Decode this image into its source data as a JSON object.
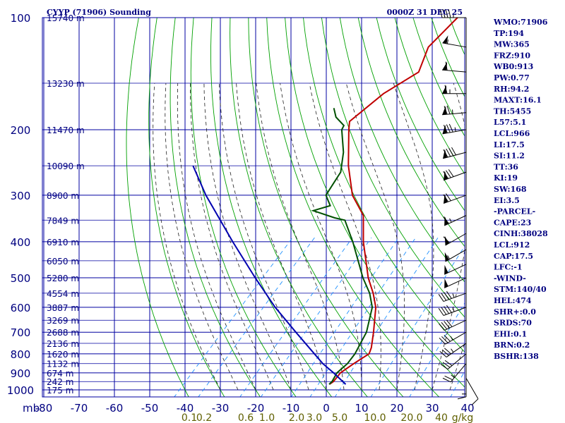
{
  "header": {
    "title": "CYYP (71906) Sounding",
    "valid_time": "0000Z 31 DEC 25"
  },
  "stats": [
    "WMO:71906",
    "TP:194",
    "MW:365",
    "FRZ:910",
    "WB0:913",
    "PW:0.77",
    "RH:94.2",
    "MAXT:16.1",
    "TH:5455",
    "L57:5.1",
    "LCL:966",
    "LI:17.5",
    "SI:11.2",
    "TT:36",
    "KI:19",
    "SW:168",
    "EI:3.5",
    "-PARCEL-",
    "CAPE:23",
    "CINH:38028",
    "LCL:912",
    "CAP:17.5",
    "LFC:-1",
    "-WIND-",
    "STM:140/40",
    "HEL:474",
    "SHR+:0.0",
    "SRDS:70",
    "EHI:0.1",
    "BRN:0.2",
    "BSHR:138"
  ],
  "colors": {
    "frame": "#0000a0",
    "dry_adiabat": "#00a000",
    "moist_adiabat": "#202020",
    "mixing_ratio": "#1e90ff",
    "temperature": "#c00000",
    "dewpoint": "#005000",
    "parcel": "#0000b0",
    "wind": "#000000",
    "mixing_label": "#606000"
  },
  "chart_data": {
    "type": "line",
    "subtype": "skew-T log-P sounding",
    "xlabel": "",
    "ylabel": "mb",
    "ylim": [
      1000,
      100
    ],
    "xlim": [
      -80,
      40
    ],
    "y_scale": "log",
    "pressure_ticks": [
      {
        "p": 100,
        "label": "100"
      },
      {
        "p": 200,
        "label": "200"
      },
      {
        "p": 300,
        "label": "300"
      },
      {
        "p": 400,
        "label": "400"
      },
      {
        "p": 500,
        "label": "500"
      },
      {
        "p": 600,
        "label": "600"
      },
      {
        "p": 700,
        "label": "700"
      },
      {
        "p": 800,
        "label": "800"
      },
      {
        "p": 900,
        "label": "900"
      },
      {
        "p": 1000,
        "label": "1000"
      }
    ],
    "temperature_ticks": [
      {
        "t": -80,
        "label": "-80"
      },
      {
        "t": -70,
        "label": "-70"
      },
      {
        "t": -60,
        "label": "-60"
      },
      {
        "t": -50,
        "label": "-50"
      },
      {
        "t": -40,
        "label": "-40"
      },
      {
        "t": -30,
        "label": "-30"
      },
      {
        "t": -20,
        "label": "-20"
      },
      {
        "t": -10,
        "label": "-10"
      },
      {
        "t": 0,
        "label": "0"
      },
      {
        "t": 10,
        "label": "10"
      },
      {
        "t": 20,
        "label": "20"
      },
      {
        "t": 30,
        "label": "30"
      },
      {
        "t": 40,
        "label": "40"
      }
    ],
    "height_labels": [
      {
        "p": 100,
        "label": "15740 m"
      },
      {
        "p": 150,
        "label": "13230 m"
      },
      {
        "p": 200,
        "label": "11470 m"
      },
      {
        "p": 250,
        "label": "10090 m"
      },
      {
        "p": 300,
        "label": "8900 m"
      },
      {
        "p": 350,
        "label": "7849 m"
      },
      {
        "p": 400,
        "label": "6910 m"
      },
      {
        "p": 450,
        "label": "6050 m"
      },
      {
        "p": 500,
        "label": "5280 m"
      },
      {
        "p": 550,
        "label": "4554 m"
      },
      {
        "p": 600,
        "label": "3887 m"
      },
      {
        "p": 650,
        "label": "3269 m"
      },
      {
        "p": 700,
        "label": "2688 m"
      },
      {
        "p": 750,
        "label": "2136 m"
      },
      {
        "p": 800,
        "label": "1620 m"
      },
      {
        "p": 850,
        "label": "1132 m"
      },
      {
        "p": 900,
        "label": "674 m"
      },
      {
        "p": 950,
        "label": "242 m"
      },
      {
        "p": 1000,
        "label": "175 m"
      }
    ],
    "mixing_ratio_labels": [
      "0.1",
      "0.2",
      "0.6",
      "1.0",
      "2.0",
      "3.0",
      "5.0",
      "10.0",
      "20.0",
      "40",
      "g/kg"
    ],
    "series": [
      {
        "role": "temperature",
        "points": [
          {
            "p": 100,
            "t": -62.1
          },
          {
            "p": 120,
            "t": -62.5
          },
          {
            "p": 140,
            "t": -58.6
          },
          {
            "p": 160,
            "t": -62.8
          },
          {
            "p": 190,
            "t": -65.0
          },
          {
            "p": 200,
            "t": -63.0
          },
          {
            "p": 250,
            "t": -53.5
          },
          {
            "p": 300,
            "t": -44.5
          },
          {
            "p": 340,
            "t": -36.0
          },
          {
            "p": 400,
            "t": -29.0
          },
          {
            "p": 500,
            "t": -18.0
          },
          {
            "p": 550,
            "t": -12.5
          },
          {
            "p": 600,
            "t": -8.0
          },
          {
            "p": 700,
            "t": -2.0
          },
          {
            "p": 770,
            "t": 1.5
          },
          {
            "p": 800,
            "t": 2.5
          },
          {
            "p": 850,
            "t": 0.8
          },
          {
            "p": 900,
            "t": -0.5
          },
          {
            "p": 950,
            "t": -0.2
          },
          {
            "p": 966,
            "t": -0.6
          }
        ]
      },
      {
        "role": "dewpoint",
        "points": [
          {
            "p": 175,
            "t": -73.0
          },
          {
            "p": 185,
            "t": -70.0
          },
          {
            "p": 195,
            "t": -65.5
          },
          {
            "p": 200,
            "t": -65.0
          },
          {
            "p": 230,
            "t": -58.5
          },
          {
            "p": 260,
            "t": -54.0
          },
          {
            "p": 300,
            "t": -52.0
          },
          {
            "p": 320,
            "t": -48.0
          },
          {
            "p": 330,
            "t": -51.5
          },
          {
            "p": 345,
            "t": -43.5
          },
          {
            "p": 350,
            "t": -40.0
          },
          {
            "p": 400,
            "t": -32.0
          },
          {
            "p": 500,
            "t": -19.5
          },
          {
            "p": 550,
            "t": -13.5
          },
          {
            "p": 600,
            "t": -9.0
          },
          {
            "p": 700,
            "t": -4.0
          },
          {
            "p": 800,
            "t": -1.5
          },
          {
            "p": 850,
            "t": -1.0
          },
          {
            "p": 900,
            "t": -1.5
          },
          {
            "p": 950,
            "t": -0.6
          },
          {
            "p": 966,
            "t": -0.7
          }
        ]
      },
      {
        "role": "parcel",
        "points": [
          {
            "p": 966,
            "t": 4.0
          },
          {
            "p": 900,
            "t": -2.5
          },
          {
            "p": 850,
            "t": -8.0
          },
          {
            "p": 800,
            "t": -13.0
          },
          {
            "p": 700,
            "t": -24.0
          },
          {
            "p": 600,
            "t": -36.5
          },
          {
            "p": 500,
            "t": -50.0
          },
          {
            "p": 400,
            "t": -66.0
          },
          {
            "p": 300,
            "t": -86.0
          },
          {
            "p": 250,
            "t": -97.5
          }
        ]
      }
    ],
    "wind_barbs": [
      {
        "p": 100,
        "dir": 270,
        "spd": 45
      },
      {
        "p": 120,
        "dir": 280,
        "spd": 55
      },
      {
        "p": 140,
        "dir": 275,
        "spd": 60
      },
      {
        "p": 160,
        "dir": 270,
        "spd": 65
      },
      {
        "p": 180,
        "dir": 265,
        "spd": 75
      },
      {
        "p": 200,
        "dir": 260,
        "spd": 85
      },
      {
        "p": 230,
        "dir": 255,
        "spd": 90
      },
      {
        "p": 260,
        "dir": 250,
        "spd": 80
      },
      {
        "p": 300,
        "dir": 250,
        "spd": 70
      },
      {
        "p": 340,
        "dir": 245,
        "spd": 65
      },
      {
        "p": 380,
        "dir": 240,
        "spd": 60
      },
      {
        "p": 420,
        "dir": 240,
        "spd": 55
      },
      {
        "p": 460,
        "dir": 245,
        "spd": 50
      },
      {
        "p": 500,
        "dir": 245,
        "spd": 50
      },
      {
        "p": 550,
        "dir": 250,
        "spd": 45
      },
      {
        "p": 600,
        "dir": 250,
        "spd": 45
      },
      {
        "p": 650,
        "dir": 245,
        "spd": 40
      },
      {
        "p": 700,
        "dir": 240,
        "spd": 35
      },
      {
        "p": 750,
        "dir": 235,
        "spd": 35
      },
      {
        "p": 800,
        "dir": 230,
        "spd": 30
      },
      {
        "p": 850,
        "dir": 220,
        "spd": 25
      },
      {
        "p": 900,
        "dir": 180,
        "spd": 15
      },
      {
        "p": 930,
        "dir": 150,
        "spd": 10
      }
    ]
  }
}
